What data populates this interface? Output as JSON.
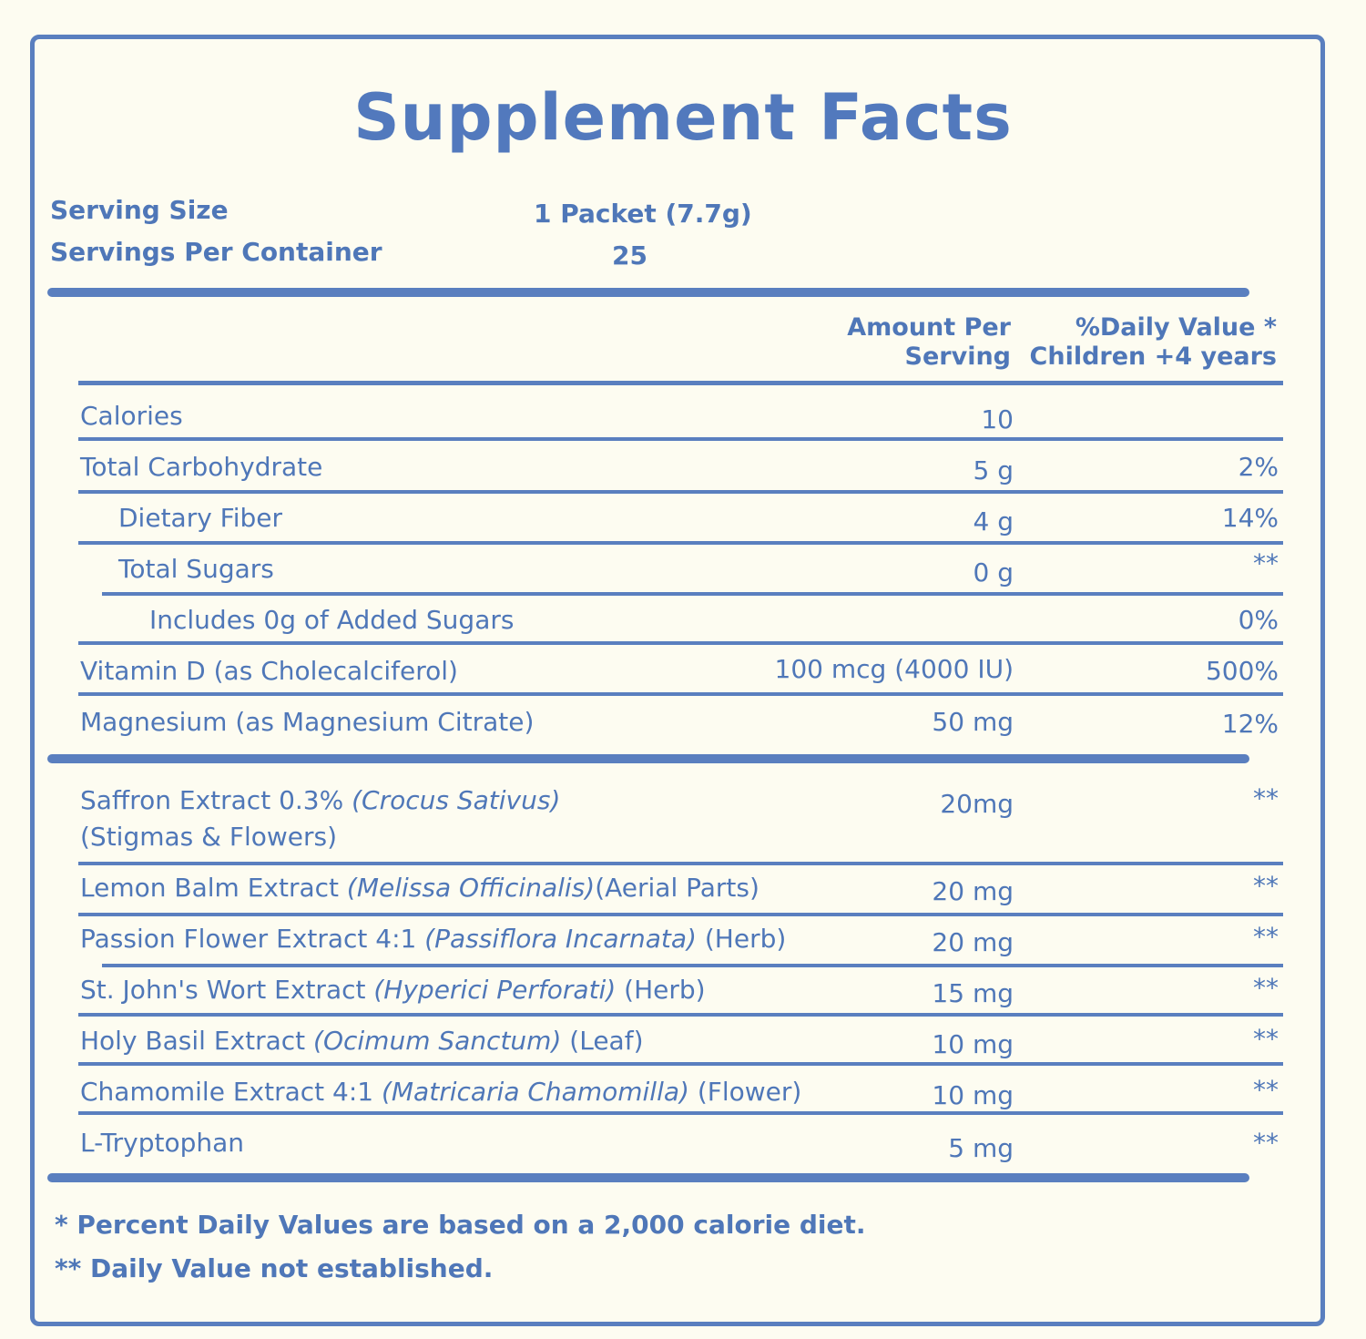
{
  "title": "Supplement Facts",
  "serving": {
    "size_label": "Serving Size",
    "size_value": "1 Packet (7.7g)",
    "per_container_label": "Servings Per Container",
    "per_container_value": "25"
  },
  "header": {
    "amount_line1": "Amount Per",
    "amount_line2": "Serving",
    "dv_line1": "%Daily Value *",
    "dv_line2": "Children +4 years"
  },
  "nutrients": [
    {
      "name": "Calories",
      "amount": "10",
      "dv": ""
    },
    {
      "name": "Total Carbohydrate",
      "amount": "5 g",
      "dv": "2%"
    },
    {
      "name": "Dietary Fiber",
      "amount": "4 g",
      "dv": "14%"
    },
    {
      "name": "Total Sugars",
      "amount": "0 g",
      "dv": "**"
    },
    {
      "name": "Includes 0g of Added Sugars",
      "amount": "",
      "dv": "0%"
    },
    {
      "name": "Vitamin D (as Cholecalciferol)",
      "amount": "100 mcg (4000 IU)",
      "dv": "500%"
    },
    {
      "name": "Magnesium  (as Magnesium Citrate)",
      "amount": "50 mg",
      "dv": "12%"
    }
  ],
  "ingredients": [
    {
      "name_a": "Saffron Extract 0.3% ",
      "latin": "(Crocus Sativus)",
      "name_b": "",
      "line2": "(Stigmas & Flowers)",
      "amount": "20mg",
      "dv": "**"
    },
    {
      "name_a": "Lemon Balm Extract ",
      "latin": "(Melissa Officinalis)",
      "name_b": "(Aerial Parts)",
      "amount": "20 mg",
      "dv": "**"
    },
    {
      "name_a": "Passion Flower Extract 4:1  ",
      "latin": "(Passiflora Incarnata)",
      "name_b": "  (Herb)",
      "amount": "20 mg",
      "dv": "**"
    },
    {
      "name_a": "St. John's Wort Extract  ",
      "latin": "(Hyperici Perforati)",
      "name_b": "  (Herb)",
      "amount": "15 mg",
      "dv": "**"
    },
    {
      "name_a": "Holy Basil Extract  ",
      "latin": "(Ocimum Sanctum)",
      "name_b": " (Leaf)",
      "amount": "10 mg",
      "dv": "**"
    },
    {
      "name_a": "Chamomile Extract 4:1 ",
      "latin": "(Matricaria Chamomilla)",
      "name_b": " (Flower)",
      "amount": "10 mg",
      "dv": "**"
    },
    {
      "name_a": "L-Tryptophan",
      "latin": "",
      "name_b": "",
      "amount": "5 mg",
      "dv": "**"
    }
  ],
  "footnotes": {
    "note1": "* Percent Daily Values are based on a 2,000 calorie diet.",
    "note2": "** Daily Value not established."
  },
  "colors": {
    "accent": "#5a7fbf",
    "background": "#fdfcf1",
    "text": "#4f77b8"
  }
}
